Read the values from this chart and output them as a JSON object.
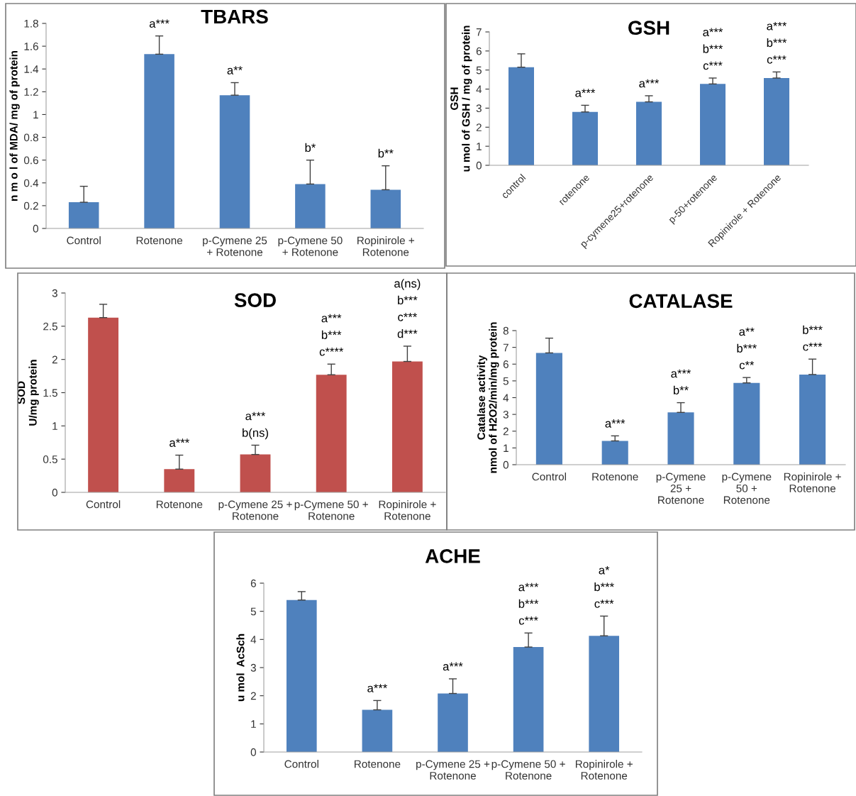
{
  "chart_data": [
    {
      "type": "bar",
      "title": "TBARS",
      "ylabel": "n m o l of MDA/ mg of protein",
      "categories": [
        "Control",
        "Rotenone",
        "p-Cymene 25\n+ Rotenone",
        "p-Cymene 50\n+ Rotenone",
        "Ropinirole +\nRotenone"
      ],
      "values": [
        0.23,
        1.53,
        1.17,
        0.39,
        0.34
      ],
      "errors": [
        [
          0.23,
          0.37
        ],
        [
          1.53,
          1.69
        ],
        [
          1.17,
          1.28
        ],
        [
          0.39,
          0.6
        ],
        [
          0.34,
          0.55
        ]
      ],
      "color": "#4f81bd",
      "ylim": [
        0,
        1.8
      ],
      "yticks": [
        0,
        0.2,
        0.4,
        0.6,
        0.8,
        1,
        1.2,
        1.4,
        1.6,
        1.8
      ],
      "grid": false,
      "legend": false,
      "value_labels": [
        null,
        "a***",
        "a**",
        "b*",
        "b**"
      ]
    },
    {
      "type": "bar",
      "title": "GSH",
      "ylabel": "GSH\nu mol of GSH / mg of protein",
      "categories": [
        "control",
        "rotenone",
        "p-cymene25+rotenone",
        "p-50+rotenone",
        "Ropinirole + Rotenone"
      ],
      "values": [
        5.15,
        2.8,
        3.33,
        4.27,
        4.58
      ],
      "errors": [
        [
          5.15,
          5.85
        ],
        [
          2.8,
          3.15
        ],
        [
          3.33,
          3.65
        ],
        [
          4.27,
          4.58
        ],
        [
          4.58,
          4.9
        ]
      ],
      "color": "#4f81bd",
      "ylim": [
        0,
        7
      ],
      "yticks": [
        0,
        1,
        2,
        3,
        4,
        5,
        6,
        7
      ],
      "grid": false,
      "legend": false,
      "value_labels": [
        null,
        "a***",
        "a***",
        "a***\nb***\nc***",
        "a***\nb***\nc***"
      ]
    },
    {
      "type": "bar",
      "title": "SOD",
      "ylabel": "SOD\nU/mg protein",
      "categories": [
        "Control",
        "Rotenone",
        "p-Cymene 25 +\nRotenone",
        "p-Cymene 50 +\nRotenone",
        "Ropinirole +\nRotenone"
      ],
      "values": [
        2.63,
        0.35,
        0.57,
        1.77,
        1.97
      ],
      "errors": [
        [
          2.63,
          2.83
        ],
        [
          0.35,
          0.56
        ],
        [
          0.57,
          0.71
        ],
        [
          1.77,
          1.93
        ],
        [
          1.97,
          2.2
        ]
      ],
      "color": "#c0504d",
      "ylim": [
        0,
        3
      ],
      "yticks": [
        0,
        0.5,
        1,
        1.5,
        2,
        2.5,
        3
      ],
      "grid": false,
      "legend": false,
      "value_labels": [
        null,
        "a***",
        "a***\nb(ns)",
        "a***\nb***\nc****",
        "a(ns)\nb***\nc***\nd***"
      ]
    },
    {
      "type": "bar",
      "title": "CATALASE",
      "ylabel": "Catalase activity\nnmol of H2O2/min/mg protein",
      "categories": [
        "Control",
        "Rotenone",
        "p-Cymene\n25 +\nRotenone",
        "p-Cymene\n50 +\nRotenone",
        "Ropinirole +\nRotenone"
      ],
      "values": [
        6.67,
        1.42,
        3.12,
        4.88,
        5.38
      ],
      "errors": [
        [
          6.67,
          7.55
        ],
        [
          1.42,
          1.72
        ],
        [
          3.12,
          3.7
        ],
        [
          4.88,
          5.2
        ],
        [
          5.38,
          6.3
        ]
      ],
      "color": "#4f81bd",
      "ylim": [
        0,
        8
      ],
      "yticks": [
        0,
        1,
        2,
        3,
        4,
        5,
        6,
        7,
        8
      ],
      "grid": false,
      "legend": false,
      "value_labels": [
        null,
        "a***",
        "a***\nb**",
        "a**\nb***\nc**",
        "b***\nc***"
      ]
    },
    {
      "type": "bar",
      "title": "ACHE",
      "ylabel": "u mol  AcSch",
      "categories": [
        "Control",
        "Rotenone",
        "p-Cymene 25 +\nRotenone",
        "p-Cymene 50 +\nRotenone",
        "Ropinirole +\nRotenone"
      ],
      "values": [
        5.4,
        1.5,
        2.08,
        3.73,
        4.13
      ],
      "errors": [
        [
          5.4,
          5.7
        ],
        [
          1.5,
          1.83
        ],
        [
          2.08,
          2.6
        ],
        [
          3.73,
          4.23
        ],
        [
          4.13,
          4.83
        ]
      ],
      "color": "#4f81bd",
      "ylim": [
        0,
        6
      ],
      "yticks": [
        0,
        1,
        2,
        3,
        4,
        5,
        6
      ],
      "grid": false,
      "legend": false,
      "value_labels": [
        null,
        "a***",
        "a***",
        "a***\nb***\nc***",
        "a*\nb***\nc***"
      ]
    }
  ]
}
